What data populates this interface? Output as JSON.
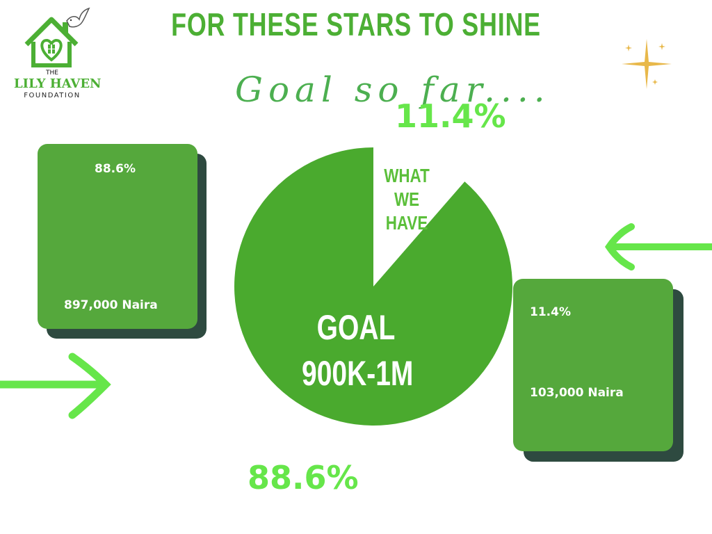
{
  "logo": {
    "line1": "THE",
    "line2": "LILY HAVEN",
    "line3": "FOUNDATION"
  },
  "title": "FOR THESE STARS TO SHINE",
  "subtitle": "Goal so far....",
  "colors": {
    "green_primary": "#4caf34",
    "green_bright": "#66e64a",
    "card_green": "#55a83c",
    "card_shadow": "#2e4a40",
    "gold_sparkle": "#e8b84a"
  },
  "chart_data": {
    "type": "pie",
    "slices": [
      {
        "label": "GOAL 900K-1M",
        "value": 88.6
      },
      {
        "label": "WHAT WE HAVE",
        "value": 11.4
      }
    ],
    "pct_labels": [
      "88.6%",
      "11.4%"
    ],
    "slice_labels": {
      "have": [
        "WHAT",
        "WE",
        "HAVE"
      ],
      "goal": [
        "GOAL",
        "900K-1M"
      ]
    }
  },
  "cards": [
    {
      "pct": "88.6%",
      "amount": "897,000 Naira"
    },
    {
      "pct": "11.4%",
      "amount": "103,000 Naira"
    }
  ]
}
